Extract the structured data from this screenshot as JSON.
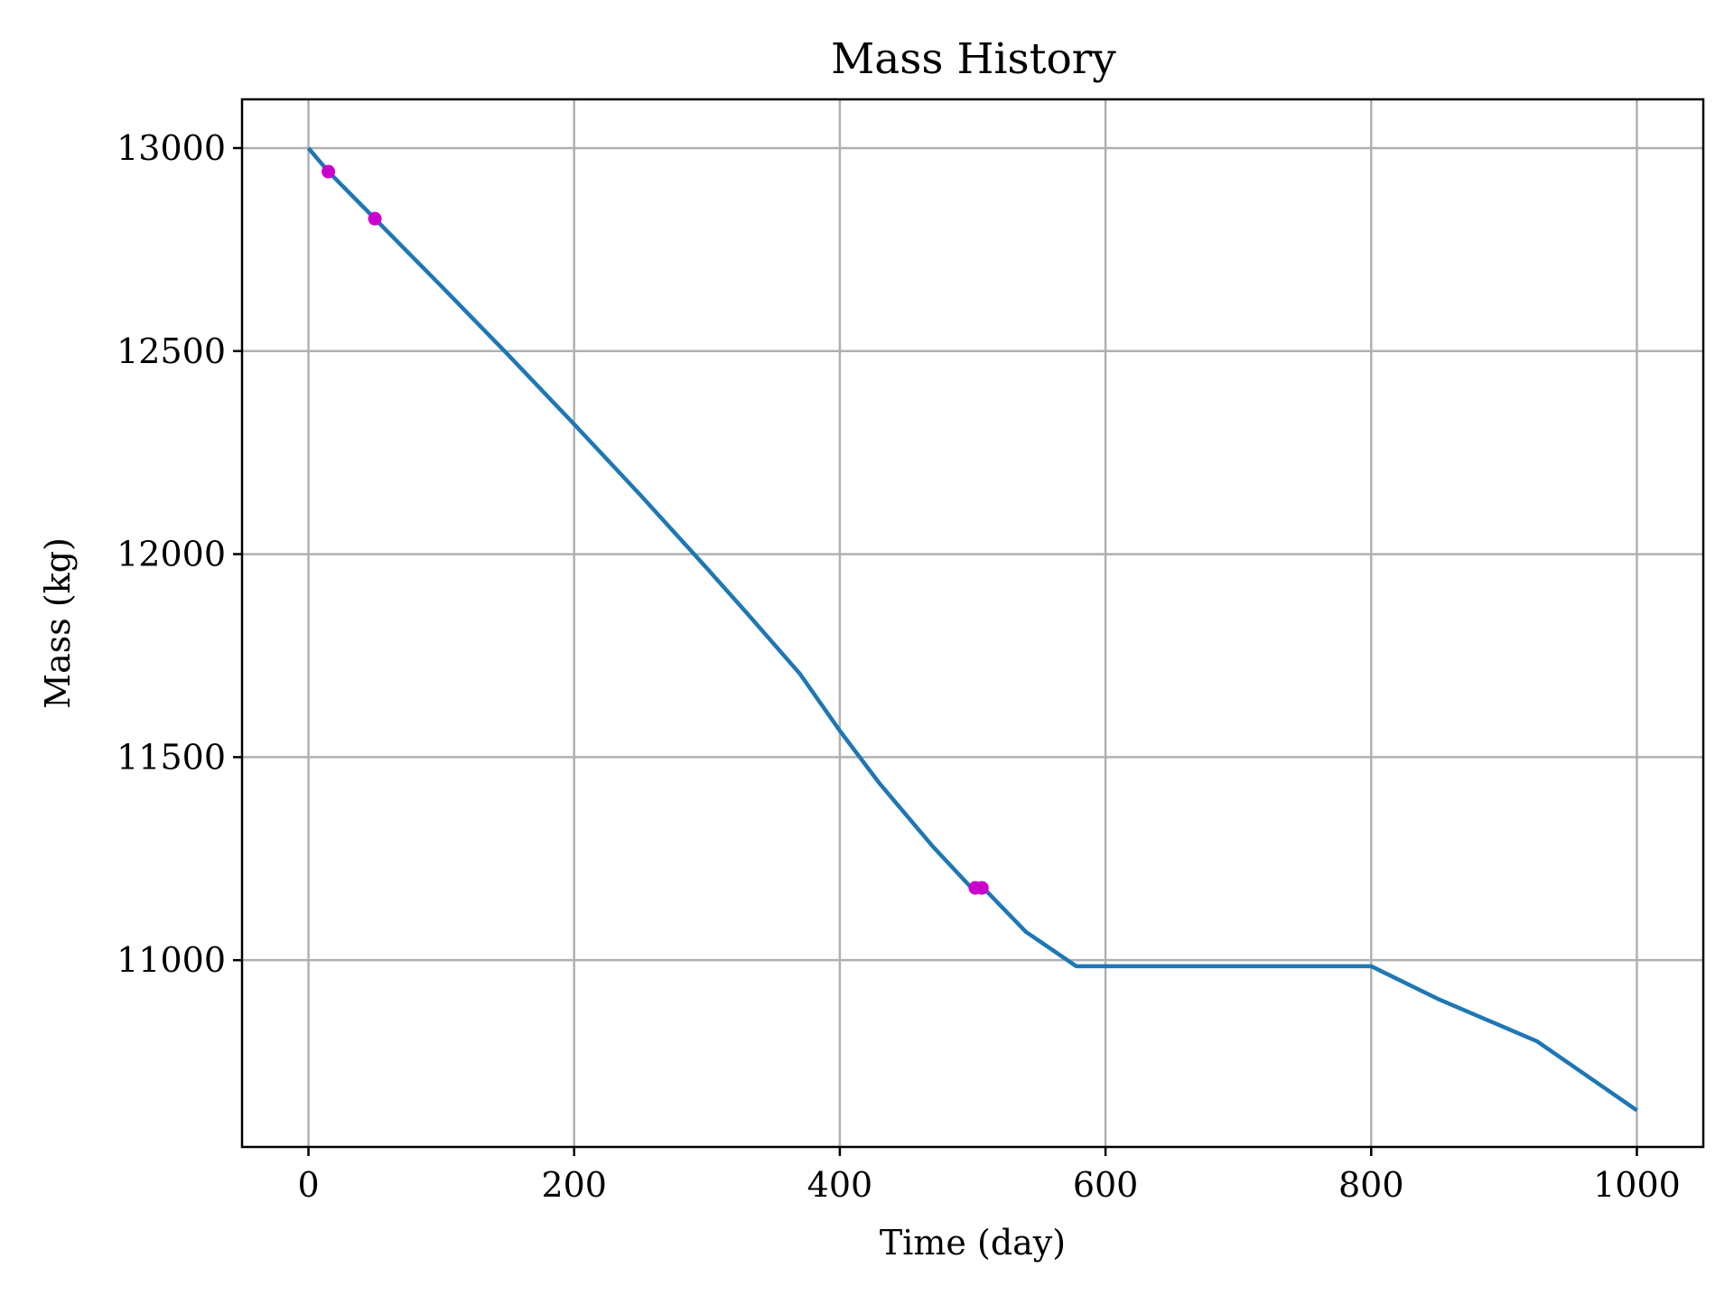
{
  "chart_data": {
    "type": "line",
    "title": "Mass History",
    "xlabel": "Time (day)",
    "ylabel": "Mass (kg)",
    "xlim": [
      -50,
      1050
    ],
    "ylim": [
      10540,
      13120
    ],
    "xticks": [
      0,
      200,
      400,
      600,
      800,
      1000
    ],
    "yticks": [
      11000,
      11500,
      12000,
      12500,
      13000
    ],
    "grid": true,
    "series": [
      {
        "color": "#1f77b4",
        "x": [
          0,
          15,
          50,
          100,
          150,
          200,
          250,
          300,
          330,
          370,
          400,
          430,
          470,
          500,
          508,
          540,
          578,
          600,
          700,
          800,
          850,
          925,
          1000
        ],
        "y": [
          13000,
          12942,
          12826,
          12660,
          12492,
          12320,
          12145,
          11965,
          11855,
          11705,
          11565,
          11435,
          11280,
          11175,
          11178,
          11070,
          10985,
          10985,
          10985,
          10985,
          10905,
          10800,
          10630
        ]
      }
    ],
    "markers": {
      "color": "#cc00cc",
      "x": [
        15,
        50,
        502,
        507
      ],
      "y": [
        12942,
        12826,
        11178,
        11178
      ]
    }
  }
}
